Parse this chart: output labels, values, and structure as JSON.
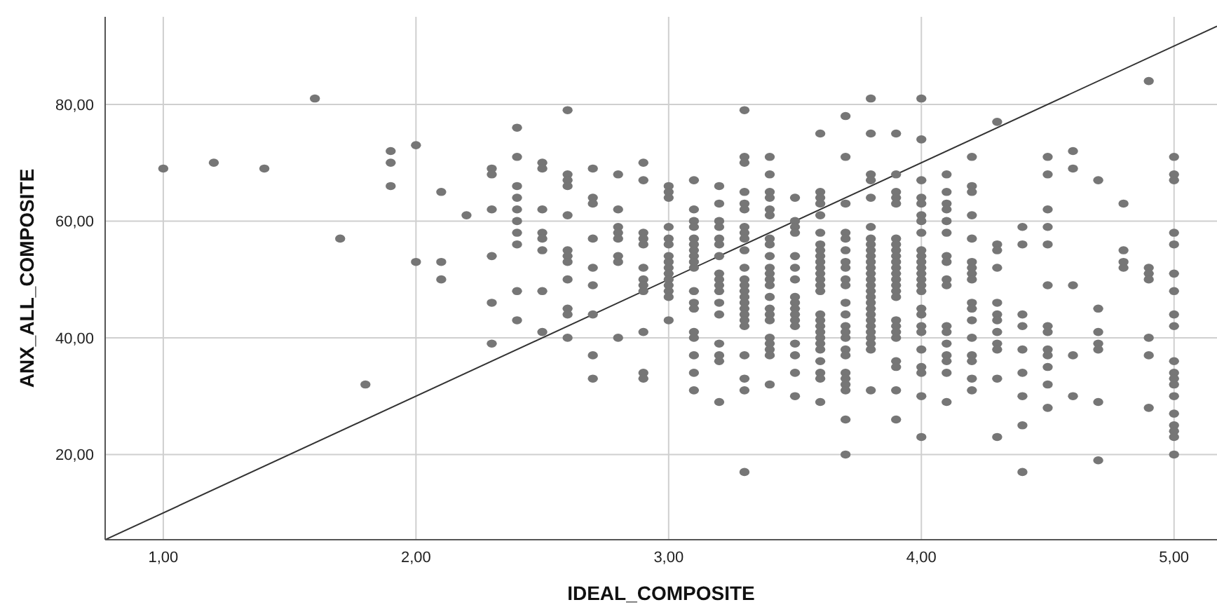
{
  "chart_data": {
    "type": "scatter",
    "xlabel": "IDEAL_COMPOSITE",
    "ylabel": "ANX_ALL_COMPOSITE",
    "xlim": [
      0.77,
      5.17
    ],
    "ylim": [
      5.4,
      95
    ],
    "xticks": [
      {
        "value": 1,
        "label": "1,00"
      },
      {
        "value": 2,
        "label": "2,00"
      },
      {
        "value": 3,
        "label": "3,00"
      },
      {
        "value": 4,
        "label": "4,00"
      },
      {
        "value": 5,
        "label": "5,00"
      }
    ],
    "yticks": [
      {
        "value": 20,
        "label": "20,00"
      },
      {
        "value": 40,
        "label": "40,00"
      },
      {
        "value": 60,
        "label": "60,00"
      },
      {
        "value": 80,
        "label": "80,00"
      }
    ],
    "grid": true,
    "legend": false,
    "marker": "circle",
    "series": [
      {
        "type": "scatter",
        "color": "#767676",
        "x": [
          1.0,
          1.2,
          1.4,
          1.6,
          1.7,
          1.8,
          1.9,
          1.9,
          1.9,
          2.0,
          2.0,
          2.1,
          2.1,
          2.1,
          2.2,
          2.3,
          2.3,
          2.3,
          2.3,
          2.3,
          2.3,
          2.4,
          2.4,
          2.4,
          2.4,
          2.4,
          2.4,
          2.4,
          2.4,
          2.4,
          2.4,
          2.5,
          2.5,
          2.5,
          2.5,
          2.5,
          2.5,
          2.5,
          2.5,
          2.6,
          2.6,
          2.6,
          2.6,
          2.6,
          2.6,
          2.6,
          2.6,
          2.6,
          2.6,
          2.6,
          2.6,
          2.7,
          2.7,
          2.7,
          2.7,
          2.7,
          2.7,
          2.7,
          2.7,
          2.7,
          2.8,
          2.8,
          2.8,
          2.8,
          2.8,
          2.8,
          2.8,
          2.8,
          2.9,
          2.9,
          2.9,
          2.9,
          2.9,
          2.9,
          2.9,
          2.9,
          2.9,
          2.9,
          2.9,
          2.9,
          3.0,
          3.0,
          3.0,
          3.0,
          3.0,
          3.0,
          3.0,
          3.0,
          3.0,
          3.0,
          3.0,
          3.0,
          3.0,
          3.0,
          3.0,
          3.1,
          3.1,
          3.1,
          3.1,
          3.1,
          3.1,
          3.1,
          3.1,
          3.1,
          3.1,
          3.1,
          3.1,
          3.1,
          3.1,
          3.1,
          3.1,
          3.1,
          3.1,
          3.2,
          3.2,
          3.2,
          3.2,
          3.2,
          3.2,
          3.2,
          3.2,
          3.2,
          3.2,
          3.2,
          3.2,
          3.2,
          3.2,
          3.2,
          3.2,
          3.2,
          3.3,
          3.3,
          3.3,
          3.3,
          3.3,
          3.3,
          3.3,
          3.3,
          3.3,
          3.3,
          3.3,
          3.3,
          3.3,
          3.3,
          3.3,
          3.3,
          3.3,
          3.3,
          3.3,
          3.3,
          3.3,
          3.3,
          3.3,
          3.3,
          3.4,
          3.4,
          3.4,
          3.4,
          3.4,
          3.4,
          3.4,
          3.4,
          3.4,
          3.4,
          3.4,
          3.4,
          3.4,
          3.4,
          3.4,
          3.4,
          3.4,
          3.4,
          3.4,
          3.4,
          3.4,
          3.4,
          3.5,
          3.5,
          3.5,
          3.5,
          3.5,
          3.5,
          3.5,
          3.5,
          3.5,
          3.5,
          3.5,
          3.5,
          3.5,
          3.5,
          3.5,
          3.5,
          3.5,
          3.6,
          3.6,
          3.6,
          3.6,
          3.6,
          3.6,
          3.6,
          3.6,
          3.6,
          3.6,
          3.6,
          3.6,
          3.6,
          3.6,
          3.6,
          3.6,
          3.6,
          3.6,
          3.6,
          3.6,
          3.6,
          3.6,
          3.6,
          3.6,
          3.6,
          3.6,
          3.7,
          3.7,
          3.7,
          3.7,
          3.7,
          3.7,
          3.7,
          3.7,
          3.7,
          3.7,
          3.7,
          3.7,
          3.7,
          3.7,
          3.7,
          3.7,
          3.7,
          3.7,
          3.7,
          3.7,
          3.7,
          3.7,
          3.7,
          3.8,
          3.8,
          3.8,
          3.8,
          3.8,
          3.8,
          3.8,
          3.8,
          3.8,
          3.8,
          3.8,
          3.8,
          3.8,
          3.8,
          3.8,
          3.8,
          3.8,
          3.8,
          3.8,
          3.8,
          3.8,
          3.8,
          3.8,
          3.8,
          3.8,
          3.8,
          3.8,
          3.9,
          3.9,
          3.9,
          3.9,
          3.9,
          3.9,
          3.9,
          3.9,
          3.9,
          3.9,
          3.9,
          3.9,
          3.9,
          3.9,
          3.9,
          3.9,
          3.9,
          3.9,
          3.9,
          3.9,
          3.9,
          3.9,
          3.9,
          3.9,
          4.0,
          4.0,
          4.0,
          4.0,
          4.0,
          4.0,
          4.0,
          4.0,
          4.0,
          4.0,
          4.0,
          4.0,
          4.0,
          4.0,
          4.0,
          4.0,
          4.0,
          4.0,
          4.0,
          4.0,
          4.0,
          4.0,
          4.0,
          4.0,
          4.0,
          4.1,
          4.1,
          4.1,
          4.1,
          4.1,
          4.1,
          4.1,
          4.1,
          4.1,
          4.1,
          4.1,
          4.1,
          4.1,
          4.1,
          4.1,
          4.1,
          4.1,
          4.2,
          4.2,
          4.2,
          4.2,
          4.2,
          4.2,
          4.2,
          4.2,
          4.2,
          4.2,
          4.2,
          4.2,
          4.2,
          4.2,
          4.2,
          4.2,
          4.2,
          4.3,
          4.3,
          4.3,
          4.3,
          4.3,
          4.3,
          4.3,
          4.3,
          4.3,
          4.3,
          4.3,
          4.3,
          4.4,
          4.4,
          4.4,
          4.4,
          4.4,
          4.4,
          4.4,
          4.4,
          4.4,
          4.5,
          4.5,
          4.5,
          4.5,
          4.5,
          4.5,
          4.5,
          4.5,
          4.5,
          4.5,
          4.5,
          4.5,
          4.5,
          4.6,
          4.6,
          4.6,
          4.6,
          4.6,
          4.7,
          4.7,
          4.7,
          4.7,
          4.7,
          4.7,
          4.7,
          4.8,
          4.8,
          4.8,
          4.8,
          4.9,
          4.9,
          4.9,
          4.9,
          4.9,
          4.9,
          4.9,
          5.0,
          5.0,
          5.0,
          5.0,
          5.0,
          5.0,
          5.0,
          5.0,
          5.0,
          5.0,
          5.0,
          5.0,
          5.0,
          5.0,
          5.0,
          5.0,
          5.0,
          5.0,
          5.0
        ],
        "values": [
          69,
          70,
          69,
          81,
          57,
          32,
          72,
          70,
          66,
          73,
          53,
          65,
          53,
          50,
          61,
          69,
          68,
          62,
          54,
          46,
          39,
          76,
          71,
          66,
          64,
          62,
          60,
          58,
          56,
          48,
          43,
          70,
          69,
          62,
          58,
          57,
          55,
          48,
          41,
          79,
          68,
          67,
          66,
          61,
          55,
          54,
          53,
          50,
          45,
          44,
          40,
          69,
          64,
          63,
          57,
          52,
          49,
          44,
          37,
          33,
          68,
          62,
          59,
          58,
          57,
          54,
          53,
          40,
          70,
          67,
          58,
          57,
          56,
          52,
          50,
          49,
          48,
          41,
          34,
          33,
          66,
          65,
          64,
          59,
          57,
          56,
          54,
          53,
          52,
          51,
          50,
          49,
          48,
          47,
          43,
          67,
          62,
          60,
          59,
          57,
          56,
          55,
          54,
          53,
          52,
          48,
          46,
          45,
          41,
          40,
          37,
          34,
          31,
          66,
          63,
          60,
          59,
          57,
          56,
          54,
          51,
          50,
          49,
          48,
          46,
          44,
          39,
          37,
          36,
          29,
          79,
          71,
          70,
          65,
          63,
          62,
          59,
          58,
          57,
          55,
          52,
          50,
          49,
          48,
          47,
          46,
          45,
          44,
          43,
          42,
          37,
          33,
          31,
          17,
          71,
          68,
          65,
          64,
          62,
          61,
          57,
          56,
          54,
          52,
          51,
          50,
          49,
          47,
          45,
          44,
          43,
          40,
          39,
          38,
          37,
          32,
          64,
          60,
          59,
          58,
          54,
          52,
          50,
          47,
          46,
          45,
          44,
          43,
          42,
          39,
          37,
          34,
          30,
          75,
          65,
          64,
          63,
          61,
          58,
          56,
          55,
          54,
          53,
          52,
          51,
          50,
          49,
          48,
          44,
          43,
          42,
          41,
          40,
          39,
          38,
          36,
          34,
          33,
          29,
          78,
          71,
          63,
          58,
          57,
          55,
          53,
          52,
          50,
          49,
          46,
          44,
          42,
          41,
          40,
          38,
          37,
          34,
          33,
          32,
          31,
          26,
          20,
          81,
          75,
          68,
          67,
          64,
          59,
          57,
          56,
          55,
          54,
          53,
          52,
          51,
          50,
          49,
          48,
          47,
          46,
          45,
          44,
          43,
          42,
          41,
          40,
          39,
          38,
          31,
          75,
          68,
          65,
          64,
          63,
          57,
          56,
          55,
          54,
          53,
          52,
          51,
          50,
          49,
          48,
          47,
          43,
          42,
          41,
          40,
          36,
          35,
          31,
          26,
          81,
          74,
          67,
          64,
          63,
          61,
          60,
          58,
          55,
          54,
          53,
          52,
          51,
          50,
          49,
          48,
          45,
          44,
          42,
          41,
          38,
          35,
          34,
          30,
          23,
          68,
          65,
          63,
          62,
          60,
          58,
          54,
          53,
          50,
          49,
          42,
          41,
          39,
          37,
          36,
          34,
          29,
          71,
          66,
          65,
          61,
          57,
          53,
          52,
          51,
          50,
          46,
          45,
          43,
          40,
          37,
          36,
          33,
          31,
          77,
          56,
          55,
          52,
          46,
          44,
          43,
          41,
          39,
          38,
          33,
          23,
          59,
          56,
          44,
          42,
          38,
          34,
          30,
          25,
          17,
          71,
          68,
          62,
          59,
          56,
          49,
          42,
          41,
          38,
          37,
          35,
          32,
          28,
          72,
          69,
          49,
          37,
          30,
          67,
          45,
          41,
          39,
          38,
          29,
          19,
          63,
          55,
          53,
          52,
          84,
          52,
          51,
          50,
          40,
          37,
          28,
          71,
          68,
          67,
          58,
          56,
          51,
          48,
          44,
          42,
          36,
          34,
          33,
          32,
          30,
          27,
          25,
          24,
          23,
          20
        ]
      },
      {
        "type": "line",
        "color": "#333333",
        "marker": "none",
        "x": [
          0.77,
          5.17
        ],
        "values": [
          5.4,
          93.4
        ]
      }
    ]
  }
}
